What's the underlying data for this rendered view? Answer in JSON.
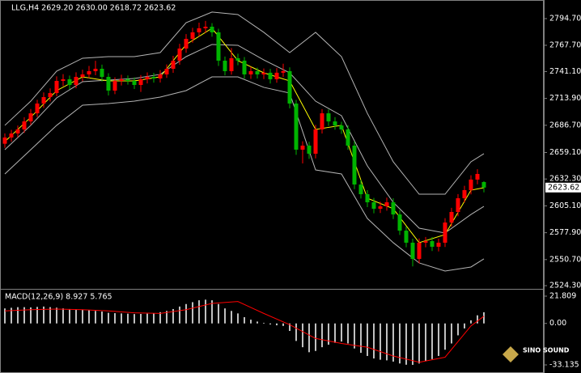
{
  "chart_data": {
    "type": "candlestick",
    "title": "LLG,H4  2629.20 2630.00 2618.72 2623.62",
    "up_color": "#ff0000",
    "down_color": "#00b400",
    "open": [
      2668.0,
      2674.3,
      2678.4,
      2682.5,
      2690.6,
      2698.8,
      2708.7,
      2715.2,
      2719.3,
      2731.6,
      2733.3,
      2727.5,
      2735.7,
      2738.2,
      2741.5,
      2743.9,
      2735.7,
      2721.8,
      2731.6,
      2733.3,
      2731.6,
      2727.5,
      2733.3,
      2735.7,
      2734.1,
      2738.2,
      2743.9,
      2752.1,
      2764.4,
      2774.2,
      2780.8,
      2784.9,
      2786.5,
      2780.8,
      2752.1,
      2741.5,
      2754.6,
      2752.1,
      2738.2,
      2741.5,
      2738.2,
      2739.9,
      2733.3,
      2739.9,
      2741.5,
      2708.7,
      2662.0,
      2666.1,
      2657.9,
      2682.5,
      2698.8,
      2690.6,
      2686.5,
      2682.5,
      2666.1,
      2626.7,
      2616.9,
      2608.7,
      2602.2,
      2604.6,
      2608.7,
      2596.4,
      2580.0,
      2567.8,
      2551.4,
      2567.8,
      2569.4,
      2563.7,
      2567.8,
      2588.2,
      2598.9,
      2612.8,
      2621.0,
      2631.7,
      2629.2
    ],
    "high": [
      2678.5,
      2682.0,
      2686.4,
      2694.8,
      2703.1,
      2712.5,
      2719.9,
      2724.0,
      2736.2,
      2738.5,
      2737.0,
      2740.3,
      2743.0,
      2746.8,
      2752.0,
      2748.1,
      2739.4,
      2735.3,
      2737.9,
      2737.1,
      2735.2,
      2737.6,
      2740.2,
      2739.8,
      2742.6,
      2748.3,
      2757.0,
      2769.2,
      2779.0,
      2785.4,
      2790.6,
      2792.3,
      2790.1,
      2784.5,
      2756.3,
      2764.9,
      2759.2,
      2755.8,
      2745.9,
      2745.0,
      2744.2,
      2743.8,
      2744.6,
      2749.0,
      2745.3,
      2712.4,
      2670.5,
      2670.0,
      2687.1,
      2703.0,
      2702.7,
      2694.9,
      2690.2,
      2686.8,
      2670.4,
      2631.3,
      2621.0,
      2613.1,
      2609.2,
      2613.4,
      2612.8,
      2600.5,
      2584.3,
      2571.9,
      2572.1,
      2573.6,
      2573.5,
      2571.9,
      2592.6,
      2603.1,
      2617.0,
      2625.4,
      2636.1,
      2642.2,
      2630.0
    ],
    "low": [
      2663.9,
      2670.1,
      2674.6,
      2679.0,
      2687.2,
      2695.0,
      2704.3,
      2710.8,
      2716.0,
      2726.4,
      2722.9,
      2724.1,
      2731.2,
      2734.5,
      2737.3,
      2731.0,
      2716.9,
      2718.2,
      2727.0,
      2727.8,
      2723.4,
      2720.5,
      2729.1,
      2729.9,
      2730.0,
      2734.7,
      2739.8,
      2748.0,
      2760.1,
      2770.3,
      2776.5,
      2780.2,
      2776.4,
      2746.8,
      2737.2,
      2738.0,
      2747.5,
      2734.0,
      2733.7,
      2734.1,
      2733.5,
      2729.0,
      2729.8,
      2735.6,
      2703.9,
      2656.8,
      2648.0,
      2652.7,
      2653.2,
      2678.4,
      2686.0,
      2682.3,
      2678.1,
      2661.9,
      2622.0,
      2612.5,
      2603.8,
      2597.6,
      2597.9,
      2600.2,
      2591.7,
      2575.6,
      2563.1,
      2543.8,
      2547.0,
      2563.2,
      2559.4,
      2559.0,
      2563.5,
      2584.0,
      2594.6,
      2608.5,
      2616.7,
      2627.0,
      2618.72
    ],
    "close": [
      2674.3,
      2678.4,
      2682.5,
      2690.6,
      2698.8,
      2708.7,
      2715.2,
      2719.3,
      2731.6,
      2733.3,
      2727.5,
      2735.7,
      2738.2,
      2741.5,
      2743.9,
      2735.7,
      2721.8,
      2731.6,
      2733.3,
      2731.6,
      2727.5,
      2733.3,
      2735.7,
      2734.1,
      2738.2,
      2743.9,
      2752.1,
      2764.4,
      2774.2,
      2780.8,
      2784.9,
      2786.5,
      2780.8,
      2752.1,
      2741.5,
      2754.6,
      2752.1,
      2738.2,
      2741.5,
      2738.2,
      2739.9,
      2733.3,
      2739.9,
      2741.5,
      2708.7,
      2662.0,
      2666.1,
      2657.9,
      2682.5,
      2698.8,
      2690.6,
      2686.5,
      2682.5,
      2666.1,
      2626.7,
      2616.9,
      2608.7,
      2602.2,
      2604.6,
      2608.7,
      2596.4,
      2580.0,
      2567.8,
      2551.4,
      2567.8,
      2569.4,
      2563.7,
      2567.8,
      2588.2,
      2598.9,
      2612.8,
      2621.0,
      2631.7,
      2637.4,
      2623.62
    ],
    "ylim": [
      2522.7,
      2811.9
    ],
    "yticks": [
      {
        "value": 2794.7,
        "label": "2794.70"
      },
      {
        "value": 2767.7,
        "label": "2767.70"
      },
      {
        "value": 2741.1,
        "label": "2741.10"
      },
      {
        "value": 2713.9,
        "label": "2713.90"
      },
      {
        "value": 2686.7,
        "label": "2686.70"
      },
      {
        "value": 2659.1,
        "label": "2659.10"
      },
      {
        "value": 2632.3,
        "label": "2632.30"
      },
      {
        "value": 2605.1,
        "label": "2605.10"
      },
      {
        "value": 2577.9,
        "label": "2577.90"
      },
      {
        "value": 2550.7,
        "label": "2550.70"
      },
      {
        "value": 2524.3,
        "label": "2524.30"
      }
    ],
    "overlay_x": [
      0,
      4,
      8,
      12,
      16,
      20,
      24,
      28,
      32,
      36,
      40,
      44,
      48,
      52,
      56,
      60,
      64,
      68,
      72,
      74
    ],
    "bands": [
      {
        "color": "#b4b4b4",
        "values": [
          2686.6,
          2711.1,
          2741.5,
          2754.6,
          2756.2,
          2756.2,
          2760.3,
          2790.6,
          2801.3,
          2798.8,
          2780.8,
          2760.3,
          2780.8,
          2756.2,
          2698.8,
          2649.7,
          2616.9,
          2616.9,
          2649.7,
          2657.9
        ]
      },
      {
        "color": "#b4b4b4",
        "values": [
          2662.0,
          2686.6,
          2714.4,
          2730.8,
          2732.4,
          2734.1,
          2738.2,
          2756.2,
          2768.5,
          2767.7,
          2752.9,
          2739.8,
          2711.1,
          2696.4,
          2645.6,
          2608.7,
          2582.5,
          2577.6,
          2596.4,
          2604.6
        ]
      },
      {
        "color": "#b4b4b4",
        "values": [
          2637.4,
          2662.0,
          2686.6,
          2707.0,
          2708.7,
          2711.1,
          2715.2,
          2721.8,
          2735.7,
          2735.7,
          2725.1,
          2719.3,
          2641.5,
          2637.4,
          2592.3,
          2567.8,
          2547.3,
          2539.1,
          2543.2,
          2551.4
        ]
      },
      {
        "color": "#ffff00",
        "values": [
          2670.2,
          2694.8,
          2721.8,
          2735.7,
          2731.6,
          2731.6,
          2735.7,
          2768.5,
          2784.9,
          2752.1,
          2739.8,
          2731.6,
          2682.5,
          2686.6,
          2612.8,
          2602.2,
          2567.8,
          2576.0,
          2621.0,
          2623.5
        ]
      }
    ],
    "macd": {
      "label": "MACD(12,26,9) 8.927 5.765",
      "histogram_color": "#ffffff",
      "histogram": [
        12,
        12.5,
        13,
        13,
        12.8,
        13.2,
        13.5,
        13,
        12.6,
        12,
        11.5,
        11,
        10.8,
        10.5,
        10,
        9.5,
        8.5,
        8.2,
        8,
        7.8,
        7.5,
        7.6,
        7.8,
        8.2,
        9,
        10,
        11.5,
        13.5,
        15.5,
        17,
        18.5,
        19,
        18.5,
        15.5,
        12,
        10,
        8,
        5,
        3,
        1.5,
        0.5,
        -0.8,
        -1.5,
        -2,
        -6,
        -14,
        -19,
        -23,
        -22,
        -19,
        -17,
        -15.5,
        -14.5,
        -16,
        -20,
        -23.5,
        -26,
        -28,
        -29,
        -29.5,
        -30.5,
        -32,
        -33,
        -33.1,
        -32,
        -30,
        -28.5,
        -26,
        -21,
        -16,
        -9.5,
        -4,
        2.5,
        6.5,
        8.927
      ],
      "signal_color": "#ff0000",
      "signal": [
        10,
        11,
        11.5,
        11,
        10,
        8.5,
        8,
        11,
        16,
        17.5,
        8,
        -1,
        -12,
        -16,
        -19,
        -26,
        -31,
        -27,
        -2,
        5.765
      ],
      "ylim": [
        -36.37,
        26.98
      ],
      "yticks": [
        21.809,
        {
          "value": 0,
          "label": "0.00"
        },
        -33.135
      ]
    },
    "watermark": "SINO SOUND"
  }
}
